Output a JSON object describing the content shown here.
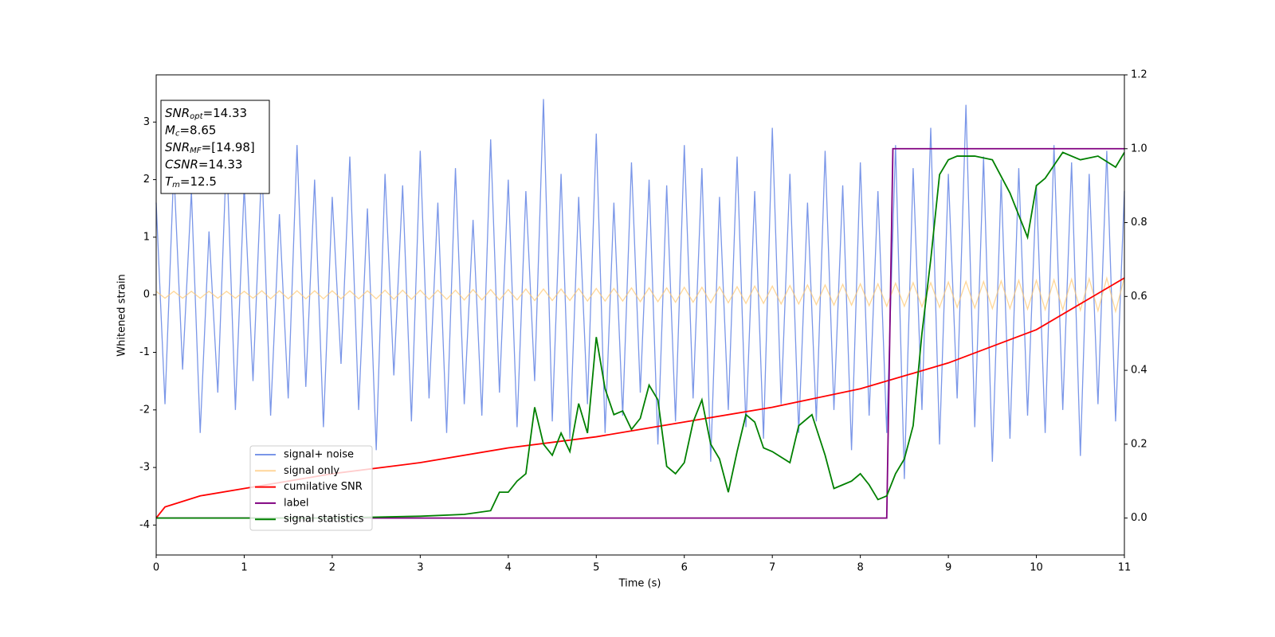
{
  "chart_data": {
    "type": "line",
    "xlabel": "Time (s)",
    "ylabel": "Whitened strain",
    "xlim": [
      0,
      11
    ],
    "xticks": [
      0,
      1,
      2,
      3,
      4,
      5,
      6,
      7,
      8,
      9,
      10,
      11
    ],
    "ylim": [
      -4.52,
      3.82
    ],
    "yticks": [
      -4,
      -3,
      -2,
      -1,
      0,
      1,
      2,
      3
    ],
    "y2lim": [
      -0.1,
      1.2
    ],
    "y2ticks": [
      {
        "value": 0,
        "label": "0.0"
      },
      {
        "value": 0.2,
        "label": "0.2"
      },
      {
        "value": 0.4,
        "label": "0.4"
      },
      {
        "value": 0.6,
        "label": "0.6"
      },
      {
        "value": 0.8,
        "label": "0.8"
      },
      {
        "value": 1.0,
        "label": "1.0"
      },
      {
        "value": 1.2,
        "label": "1.2"
      }
    ],
    "legend": "lower left",
    "annotation": [
      {
        "main": "SNR",
        "sub": "opt",
        "rest": "=14.33"
      },
      {
        "main": "M",
        "sub": "c",
        "rest": "=8.65"
      },
      {
        "main": "SNR",
        "sub": "MF",
        "rest": "=[14.98]"
      },
      {
        "main": "CSNR",
        "rest": "=14.33"
      },
      {
        "main": "T",
        "sub": "m",
        "rest": "=12.5"
      }
    ],
    "x": [
      0,
      0.1,
      0.2,
      0.3,
      0.4,
      0.5,
      0.6,
      0.7,
      0.8,
      0.9,
      1,
      1.1,
      1.2,
      1.3,
      1.4,
      1.5,
      1.6,
      1.7,
      1.8,
      1.9,
      2,
      2.1,
      2.2,
      2.3,
      2.4,
      2.5,
      2.6,
      2.7,
      2.8,
      2.9,
      3,
      3.1,
      3.2,
      3.3,
      3.4,
      3.5,
      3.6,
      3.7,
      3.8,
      3.9,
      4,
      4.1,
      4.2,
      4.3,
      4.4,
      4.5,
      4.6,
      4.7,
      4.8,
      4.9,
      5,
      5.1,
      5.2,
      5.3,
      5.4,
      5.5,
      5.6,
      5.7,
      5.8,
      5.9,
      6,
      6.1,
      6.2,
      6.3,
      6.4,
      6.5,
      6.6,
      6.7,
      6.8,
      6.9,
      7,
      7.1,
      7.2,
      7.3,
      7.4,
      7.5,
      7.6,
      7.7,
      7.8,
      7.9,
      8,
      8.1,
      8.2,
      8.3,
      8.4,
      8.5,
      8.6,
      8.7,
      8.8,
      8.9,
      9,
      9.1,
      9.2,
      9.3,
      9.4,
      9.5,
      9.6,
      9.7,
      9.8,
      9.9,
      10,
      10.1,
      10.2,
      10.3,
      10.4,
      10.5,
      10.6,
      10.7,
      10.8,
      10.9,
      11
    ],
    "series": [
      {
        "name": "signal+ noise",
        "color": "#7a96e8",
        "values": [
          1.6,
          -1.9,
          2.2,
          -1.3,
          1.8,
          -2.4,
          1.1,
          -1.7,
          2.5,
          -2.0,
          1.9,
          -1.5,
          2.3,
          -2.1,
          1.4,
          -1.8,
          2.6,
          -1.6,
          2.0,
          -2.3,
          1.7,
          -1.2,
          2.4,
          -2.0,
          1.5,
          -2.7,
          2.1,
          -1.4,
          1.9,
          -2.2,
          2.5,
          -1.8,
          1.6,
          -2.4,
          2.2,
          -1.9,
          1.3,
          -2.1,
          2.7,
          -1.7,
          2.0,
          -2.3,
          1.8,
          -1.5,
          3.4,
          -2.2,
          2.1,
          -2.5,
          1.7,
          -1.9,
          2.8,
          -2.4,
          1.6,
          -2.1,
          2.3,
          -1.7,
          2.0,
          -2.6,
          1.9,
          -2.2,
          2.6,
          -1.8,
          2.2,
          -2.9,
          1.7,
          -2.0,
          2.4,
          -2.3,
          1.8,
          -2.5,
          2.9,
          -1.9,
          2.1,
          -2.4,
          1.6,
          -2.2,
          2.5,
          -2.0,
          1.9,
          -2.7,
          2.3,
          -2.1,
          1.8,
          -2.4,
          2.6,
          -3.2,
          2.2,
          -2.0,
          2.9,
          -2.6,
          2.1,
          -1.8,
          3.3,
          -2.3,
          2.4,
          -2.9,
          2.0,
          -2.5,
          2.2,
          -2.1,
          1.9,
          -2.4,
          2.6,
          -2.0,
          2.3,
          -2.8,
          2.1,
          -1.9,
          2.5,
          -2.2,
          1.8
        ]
      },
      {
        "name": "signal only",
        "color": "#ffc66e",
        "values": [
          0.06,
          -0.06,
          0.06,
          -0.06,
          0.06,
          -0.06,
          0.06,
          -0.06,
          0.06,
          -0.06,
          0.06,
          -0.06,
          0.07,
          -0.07,
          0.07,
          -0.07,
          0.07,
          -0.07,
          0.07,
          -0.07,
          0.07,
          -0.07,
          0.07,
          -0.07,
          0.07,
          -0.07,
          0.08,
          -0.08,
          0.08,
          -0.08,
          0.08,
          -0.08,
          0.08,
          -0.08,
          0.08,
          -0.09,
          0.09,
          -0.09,
          0.09,
          -0.09,
          0.09,
          -0.09,
          0.1,
          -0.1,
          0.1,
          -0.1,
          0.1,
          -0.1,
          0.11,
          -0.11,
          0.11,
          -0.11,
          0.11,
          -0.11,
          0.12,
          -0.12,
          0.12,
          -0.12,
          0.12,
          -0.13,
          0.13,
          -0.13,
          0.13,
          -0.14,
          0.14,
          -0.14,
          0.14,
          -0.15,
          0.15,
          -0.15,
          0.15,
          -0.16,
          0.16,
          -0.16,
          0.17,
          -0.17,
          0.17,
          -0.18,
          0.18,
          -0.18,
          0.19,
          -0.19,
          0.19,
          -0.2,
          0.2,
          -0.2,
          0.21,
          -0.21,
          0.21,
          -0.22,
          0.22,
          -0.22,
          0.23,
          -0.23,
          0.23,
          -0.24,
          0.24,
          -0.24,
          0.25,
          -0.25,
          0.25,
          -0.26,
          0.26,
          -0.26,
          0.27,
          -0.27,
          0.28,
          -0.28,
          0.29,
          -0.29,
          0.3
        ]
      },
      {
        "name": "cumilative SNR",
        "color": "#ff0000",
        "axis": "y2",
        "x": [
          0,
          0.1,
          0.5,
          1,
          2,
          3,
          4,
          5,
          6,
          7,
          8,
          9,
          10,
          11
        ],
        "values": [
          0,
          0.03,
          0.06,
          0.08,
          0.12,
          0.15,
          0.19,
          0.22,
          0.26,
          0.3,
          0.35,
          0.42,
          0.51,
          0.65
        ]
      },
      {
        "name": "label",
        "color": "#800080",
        "axis": "y2",
        "x": [
          0,
          8.3,
          8.37,
          11
        ],
        "values": [
          0,
          0,
          1,
          1
        ]
      },
      {
        "name": "signal statistics",
        "color": "#008000",
        "axis": "y2",
        "x": [
          0,
          1,
          2,
          3,
          3.5,
          3.8,
          3.9,
          4,
          4.1,
          4.2,
          4.3,
          4.4,
          4.5,
          4.6,
          4.7,
          4.8,
          4.9,
          5,
          5.1,
          5.2,
          5.3,
          5.4,
          5.5,
          5.6,
          5.7,
          5.8,
          5.9,
          6,
          6.1,
          6.2,
          6.3,
          6.4,
          6.5,
          6.6,
          6.7,
          6.8,
          6.9,
          7,
          7.2,
          7.3,
          7.45,
          7.6,
          7.7,
          7.8,
          7.9,
          8,
          8.1,
          8.2,
          8.3,
          8.4,
          8.5,
          8.6,
          8.7,
          8.8,
          8.9,
          9,
          9.1,
          9.3,
          9.5,
          9.7,
          9.8,
          9.9,
          10,
          10.1,
          10.3,
          10.5,
          10.7,
          10.9,
          11
        ],
        "values": [
          0,
          0,
          0,
          0.005,
          0.01,
          0.02,
          0.07,
          0.07,
          0.1,
          0.12,
          0.3,
          0.2,
          0.17,
          0.23,
          0.18,
          0.31,
          0.23,
          0.49,
          0.35,
          0.28,
          0.29,
          0.24,
          0.27,
          0.36,
          0.32,
          0.14,
          0.12,
          0.15,
          0.26,
          0.32,
          0.2,
          0.16,
          0.07,
          0.18,
          0.28,
          0.26,
          0.19,
          0.18,
          0.15,
          0.25,
          0.28,
          0.17,
          0.08,
          0.09,
          0.1,
          0.12,
          0.09,
          0.05,
          0.06,
          0.12,
          0.16,
          0.25,
          0.5,
          0.7,
          0.93,
          0.97,
          0.98,
          0.98,
          0.97,
          0.88,
          0.82,
          0.76,
          0.9,
          0.92,
          0.99,
          0.97,
          0.98,
          0.95,
          0.99
        ]
      }
    ]
  }
}
